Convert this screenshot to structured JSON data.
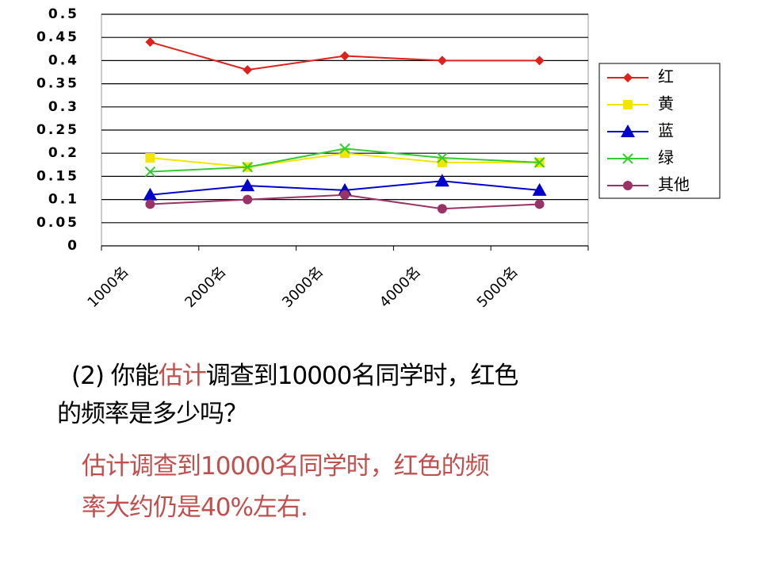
{
  "chart_data": {
    "type": "line",
    "categories": [
      "1000名",
      "2000名",
      "3000名",
      "4000名",
      "5000名"
    ],
    "series": [
      {
        "name": "红",
        "color": "#e0201b",
        "marker": "diamond",
        "values": [
          0.44,
          0.38,
          0.41,
          0.4,
          0.4
        ]
      },
      {
        "name": "黄",
        "color": "#f2e600",
        "marker": "square",
        "values": [
          0.19,
          0.17,
          0.2,
          0.18,
          0.18
        ]
      },
      {
        "name": "蓝",
        "color": "#0000cc",
        "marker": "triangle",
        "values": [
          0.11,
          0.13,
          0.12,
          0.14,
          0.12
        ]
      },
      {
        "name": "绿",
        "color": "#33cc33",
        "marker": "x",
        "values": [
          0.16,
          0.17,
          0.21,
          0.19,
          0.18
        ]
      },
      {
        "name": "其他",
        "color": "#993366",
        "marker": "circle",
        "values": [
          0.09,
          0.1,
          0.11,
          0.08,
          0.09
        ]
      }
    ],
    "ylim": [
      0,
      0.5
    ],
    "yticks": [
      0,
      0.05,
      0.1,
      0.15,
      0.2,
      0.25,
      0.3,
      0.35,
      0.4,
      0.45,
      0.5
    ],
    "grid": true,
    "legend": "right"
  },
  "question": {
    "lines": [
      [
        "(2) 你能",
        "估计",
        "调查到10000名同学时，红色"
      ],
      [
        "的频率是多少吗？"
      ]
    ]
  },
  "answer": {
    "lines": [
      "估计调查到10000名同学时，红色的频",
      "率大约仍是40%左右."
    ]
  }
}
